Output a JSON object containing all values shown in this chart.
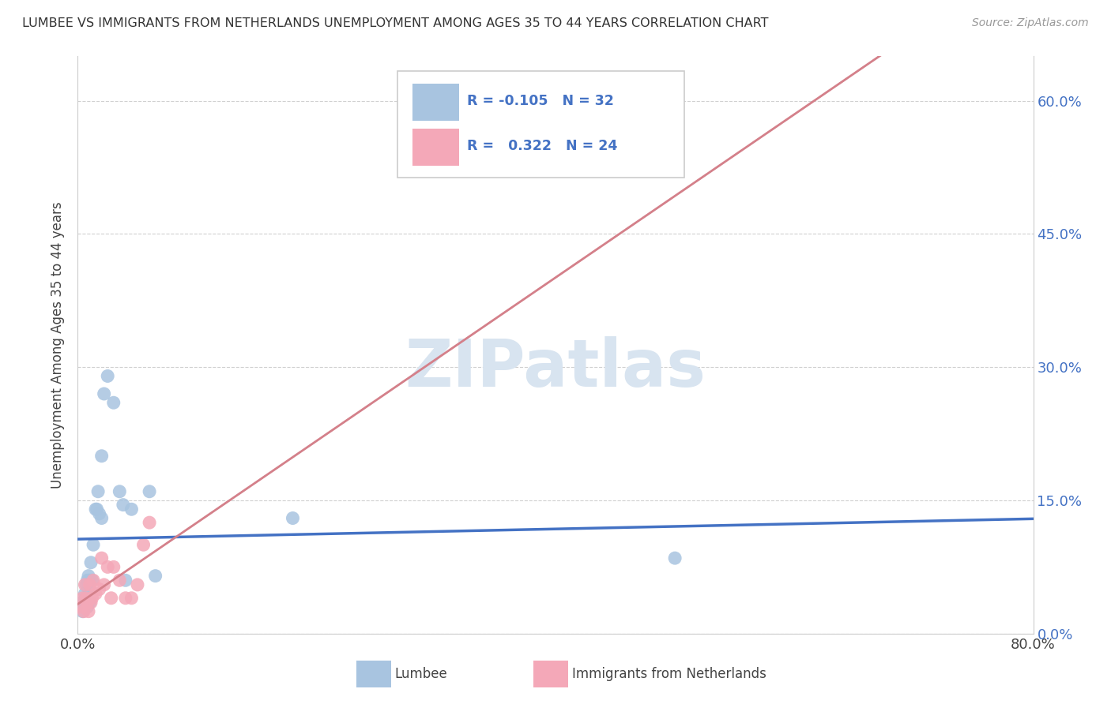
{
  "title": "LUMBEE VS IMMIGRANTS FROM NETHERLANDS UNEMPLOYMENT AMONG AGES 35 TO 44 YEARS CORRELATION CHART",
  "source": "Source: ZipAtlas.com",
  "ylabel": "Unemployment Among Ages 35 to 44 years",
  "xlim": [
    0.0,
    0.8
  ],
  "ylim": [
    0.0,
    0.65
  ],
  "yticks": [
    0.0,
    0.15,
    0.3,
    0.45,
    0.6
  ],
  "xticks": [
    0.0,
    0.8
  ],
  "legend_label1": "Lumbee",
  "legend_label2": "Immigrants from Netherlands",
  "R1": "-0.105",
  "N1": "32",
  "R2": "0.322",
  "N2": "24",
  "lumbee_color": "#a8c4e0",
  "netherlands_color": "#f4a8b8",
  "trendline1_color": "#4472c4",
  "trendline2_color": "#d4808a",
  "trendline2_dash_color": "#e8b8c0",
  "watermark_color": "#d8e4f0",
  "lumbee_x": [
    0.003,
    0.004,
    0.005,
    0.006,
    0.007,
    0.007,
    0.008,
    0.008,
    0.009,
    0.009,
    0.01,
    0.01,
    0.011,
    0.012,
    0.013,
    0.015,
    0.016,
    0.017,
    0.018,
    0.02,
    0.02,
    0.022,
    0.025,
    0.03,
    0.035,
    0.038,
    0.04,
    0.045,
    0.06,
    0.065,
    0.18,
    0.5
  ],
  "lumbee_y": [
    0.035,
    0.025,
    0.03,
    0.045,
    0.04,
    0.055,
    0.06,
    0.03,
    0.05,
    0.065,
    0.035,
    0.06,
    0.08,
    0.06,
    0.1,
    0.14,
    0.14,
    0.16,
    0.135,
    0.13,
    0.2,
    0.27,
    0.29,
    0.26,
    0.16,
    0.145,
    0.06,
    0.14,
    0.16,
    0.065,
    0.13,
    0.085
  ],
  "netherlands_x": [
    0.003,
    0.004,
    0.005,
    0.006,
    0.007,
    0.008,
    0.009,
    0.01,
    0.011,
    0.012,
    0.013,
    0.015,
    0.018,
    0.02,
    0.022,
    0.025,
    0.028,
    0.03,
    0.035,
    0.04,
    0.045,
    0.05,
    0.055,
    0.06
  ],
  "netherlands_y": [
    0.03,
    0.04,
    0.025,
    0.055,
    0.04,
    0.035,
    0.025,
    0.055,
    0.035,
    0.04,
    0.06,
    0.045,
    0.05,
    0.085,
    0.055,
    0.075,
    0.04,
    0.075,
    0.06,
    0.04,
    0.04,
    0.055,
    0.1,
    0.125
  ],
  "background_color": "#ffffff",
  "grid_color": "#d0d0d0"
}
